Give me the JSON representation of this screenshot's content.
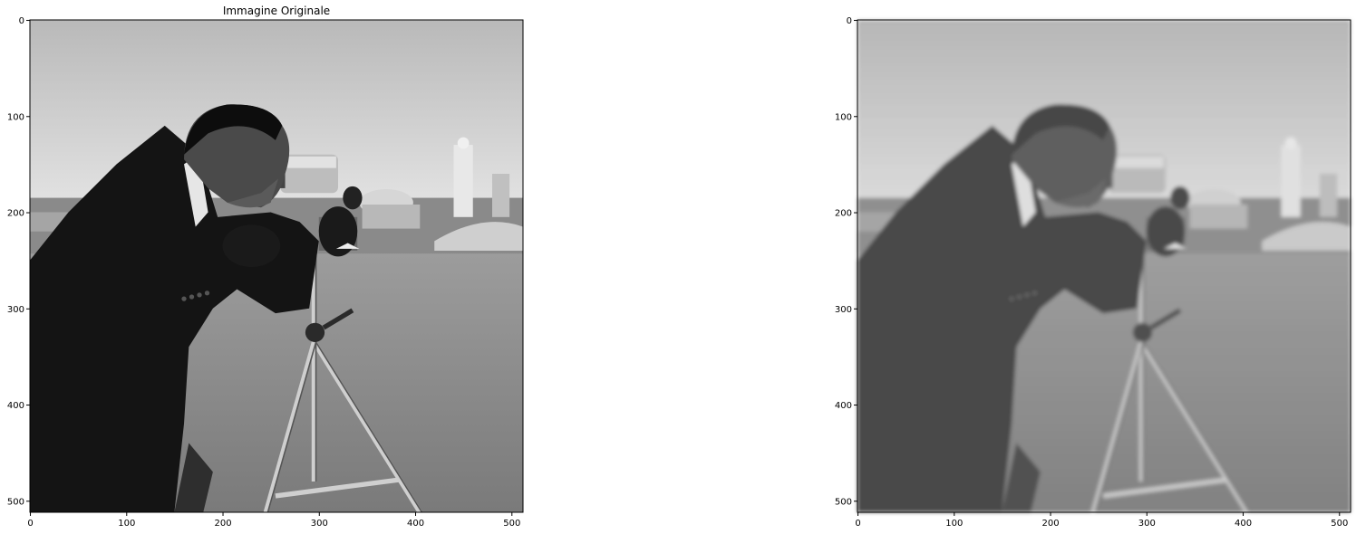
{
  "figure": {
    "background": "#ffffff",
    "panels": [
      {
        "id": "original",
        "title": "Immagine Originale",
        "image_subject": "cameraman",
        "blurred": false,
        "x_ticks": [
          0,
          100,
          200,
          300,
          400,
          500
        ],
        "y_ticks": [
          0,
          100,
          200,
          300,
          400,
          500
        ],
        "x_range": [
          0,
          511
        ],
        "y_range": [
          0,
          511
        ]
      },
      {
        "id": "blurred",
        "title": "",
        "image_subject": "cameraman",
        "blurred": true,
        "x_ticks": [
          0,
          100,
          200,
          300,
          400,
          500
        ],
        "y_ticks": [
          0,
          100,
          200,
          300,
          400,
          500
        ],
        "x_range": [
          0,
          511
        ],
        "y_range": [
          0,
          511
        ]
      }
    ]
  }
}
